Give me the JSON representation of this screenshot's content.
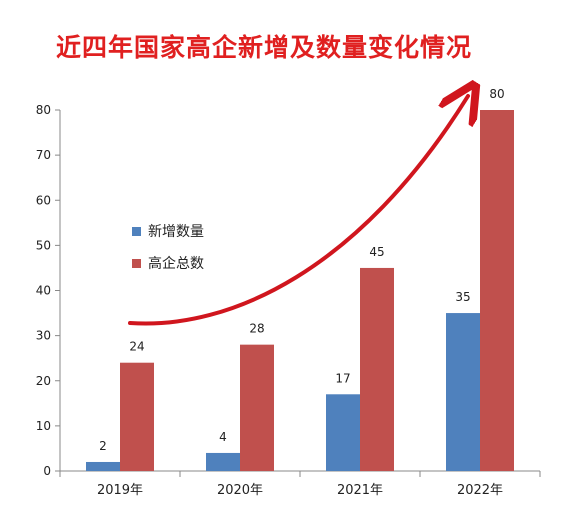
{
  "chart_data": {
    "type": "bar",
    "title": "近四年国家高企新增及数量变化情况",
    "categories": [
      "2019年",
      "2020年",
      "2021年",
      "2022年"
    ],
    "series": [
      {
        "name": "新增数量",
        "values": [
          2,
          4,
          17,
          35
        ],
        "color": "#4f81bd"
      },
      {
        "name": "高企总数",
        "values": [
          24,
          28,
          45,
          80
        ],
        "color": "#c0504d"
      }
    ],
    "yticks": [
      0,
      10,
      20,
      30,
      40,
      50,
      60,
      70,
      80
    ],
    "ylim": [
      0,
      80
    ],
    "grid": false,
    "legend": "left-middle",
    "annotation": {
      "type": "trend-arrow",
      "color": "#d0161e"
    }
  }
}
